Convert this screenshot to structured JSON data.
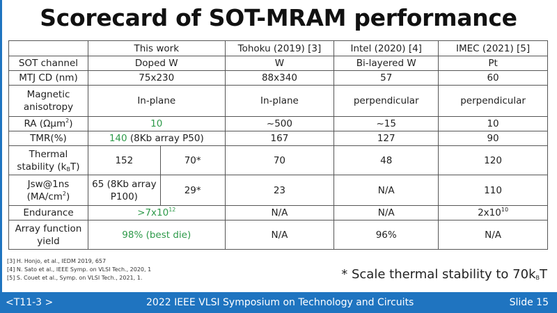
{
  "title": "Scorecard of SOT-MRAM performance",
  "table": {
    "headers": [
      "",
      "This work",
      "Tohoku (2019) [3]",
      "Intel (2020) [4]",
      "IMEC (2021) [5]"
    ],
    "rows": [
      {
        "label": "SOT channel",
        "this_work": "Doped W",
        "tohoku": "W",
        "intel": "Bi-layered W",
        "imec": "Pt"
      },
      {
        "label": "MTJ CD (nm)",
        "this_work": "75x230",
        "tohoku": "88x340",
        "intel": "57",
        "imec": "60"
      },
      {
        "label": "Magnetic anisotropy",
        "this_work": "In-plane",
        "tohoku": "In-plane",
        "intel": "perpendicular",
        "imec": "perpendicular"
      },
      {
        "label": "RA (Ωμm",
        "label_sup": "2",
        "label_end": ")",
        "this_work": "10",
        "tohoku": "~500",
        "intel": "~15",
        "imec": "10"
      },
      {
        "label": "TMR(%)",
        "this_work": "140",
        "this_work_note": " (8Kb array P50)",
        "tohoku": "167",
        "intel": "127",
        "imec": "90"
      },
      {
        "label": "Thermal stability (k",
        "label_sub": "B",
        "label_end": "T)",
        "this_work": "152",
        "this_work_scaled": "70*",
        "tohoku": "70",
        "intel": "48",
        "imec": "120"
      },
      {
        "label": "Jsw@1ns (MA/cm",
        "label_sup": "2",
        "label_end": ")",
        "this_work": "65 (8Kb array P100)",
        "this_work_scaled": "29*",
        "tohoku": "23",
        "intel": "N/A",
        "imec": "110"
      },
      {
        "label": "Endurance",
        "this_work": ">7x10",
        "this_work_sup": "12",
        "tohoku": "N/A",
        "intel": "N/A",
        "imec": "2x10",
        "imec_sup": "10"
      },
      {
        "label": "Array function yield",
        "this_work": "98% (best die)",
        "tohoku": "N/A",
        "intel": "96%",
        "imec": "N/A"
      }
    ]
  },
  "references": [
    "[3] H. Honjo, et al., IEDM 2019, 657",
    "[4] N. Sato et al., IEEE Symp. on VLSI Tech., 2020, 1",
    "[5] S. Couet et al., Symp. on VLSI Tech., 2021, 1."
  ],
  "note": {
    "text": "* Scale thermal stability to 70k",
    "sub": "B",
    "end": "T"
  },
  "footer": {
    "left": "<T11-3 >",
    "center": "2022 IEEE VLSI Symposium on Technology and Circuits",
    "right": "Slide 15"
  },
  "colors": {
    "accent": "#1f74c0",
    "highlight": "#2e9a4a"
  }
}
